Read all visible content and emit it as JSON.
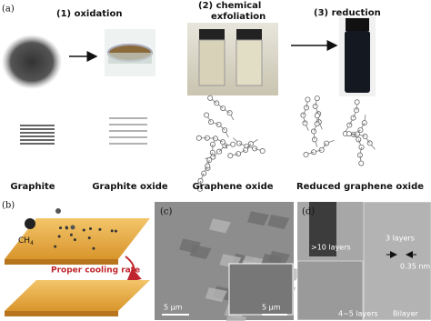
{
  "panel_a": {
    "label": "(a)",
    "steps": {
      "oxidation": "(1) oxidation",
      "exfoliation": [
        "(2) chemical",
        "exfoliation"
      ],
      "reduction": "(3) reduction"
    },
    "captions": [
      "Graphite",
      "Graphite oxide",
      "Graphene oxide",
      "Reduced graphene oxide"
    ]
  },
  "panel_b": {
    "label": "(b)",
    "gas": "CH",
    "gas_sub": "4",
    "note": "Proper cooling rate"
  },
  "panel_c": {
    "label": "(c)",
    "scale": "5 μm",
    "inset_scale": "5 μm"
  },
  "panel_d": {
    "label": "(d)",
    "annotations": [
      ">10 layers",
      "3 layers",
      "0.35 nm",
      "4~5 layers",
      "Bilayer"
    ]
  }
}
